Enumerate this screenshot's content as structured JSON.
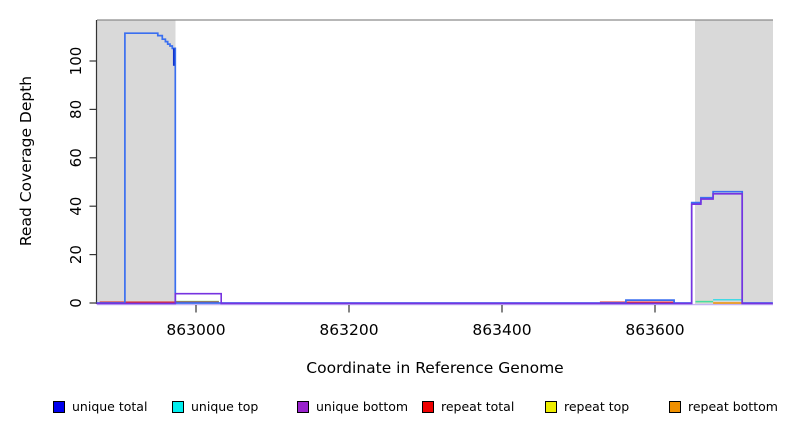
{
  "figure": {
    "background": "#ffffff",
    "plot_bg": "#ffffff",
    "highlight_color": "#d9d9d9",
    "axis_color": "#333333",
    "box_top_color": "#8c8c8c"
  },
  "chart_data": {
    "type": "line",
    "title": "",
    "xlabel": "Coordinate in Reference Genome",
    "ylabel": "Read Coverage Depth",
    "xlim": [
      862870,
      863754
    ],
    "ylim": [
      0,
      117
    ],
    "xticks": [
      "863000",
      "863200",
      "863400",
      "863600"
    ],
    "xtick_values": [
      863000,
      863200,
      863400,
      863600
    ],
    "yticks": [
      "0",
      "20",
      "40",
      "60",
      "80",
      "100"
    ],
    "ytick_values": [
      0,
      20,
      40,
      60,
      80,
      100
    ],
    "grid": false,
    "legend_position": "bottom",
    "highlight_regions": [
      [
        862870,
        862973
      ],
      [
        863652,
        863754
      ]
    ],
    "legend": [
      {
        "label": "unique total",
        "color": "#0000ee"
      },
      {
        "label": "unique top",
        "color": "#00eeee"
      },
      {
        "label": "unique bottom",
        "color": "#9922cc"
      },
      {
        "label": "repeat total",
        "color": "#ee0000"
      },
      {
        "label": "repeat top",
        "color": "#eeee00"
      },
      {
        "label": "repeat bottom",
        "color": "#f09000"
      }
    ],
    "series": [
      {
        "name": "repeat top",
        "draw_color": "#e8e800",
        "width": 1.5,
        "opacity": 1,
        "dy": -1.4,
        "segments": [
          [
            [
              862973,
              0
            ],
            [
              863030,
              0
            ]
          ],
          [
            [
              863653,
              0
            ],
            [
              863676,
              0
            ]
          ]
        ]
      },
      {
        "name": "unique top",
        "draw_color": "#00d8e8",
        "width": 1.5,
        "opacity": 0.7,
        "dy": -1.4,
        "segments": [
          [
            [
              862973,
              0
            ],
            [
              863030,
              0
            ]
          ],
          [
            [
              863653,
              0
            ],
            [
              863676,
              0
            ]
          ],
          [
            [
              863676,
              0.8
            ],
            [
              863714,
              0.8
            ]
          ]
        ]
      },
      {
        "name": "repeat total",
        "draw_color": "#e02020",
        "width": 1.4,
        "opacity": 1,
        "dy": -0.8,
        "segments": [
          [
            [
              862874,
              0
            ],
            [
              863030,
              0
            ]
          ],
          [
            [
              863528,
              0
            ],
            [
              863625,
              0
            ]
          ]
        ]
      },
      {
        "name": "repeat bottom",
        "draw_color": "#f09000",
        "width": 1.5,
        "opacity": 1,
        "dy": 0,
        "segments": [
          [
            [
              863676,
              0
            ],
            [
              863714,
              0
            ]
          ]
        ]
      },
      {
        "name": "unique total",
        "draw_color": "#3a6ff0",
        "width": 1.7,
        "opacity": 1,
        "dy": 0,
        "segments": [
          [
            [
              862870,
              0
            ],
            [
              862907,
              0
            ],
            [
              862907,
              111.5
            ],
            [
              862950,
              111.5
            ],
            [
              862950,
              110.5
            ],
            [
              862956,
              110.5
            ],
            [
              862956,
              109
            ],
            [
              862960,
              109
            ],
            [
              862960,
              108
            ],
            [
              862963,
              108
            ],
            [
              862963,
              107
            ],
            [
              862966,
              107
            ],
            [
              862966,
              106.2
            ],
            [
              862969,
              106.2
            ],
            [
              862969,
              105.2
            ],
            [
              862973,
              105.2
            ],
            [
              862973,
              0
            ],
            [
              863562,
              0
            ],
            [
              863562,
              1.2
            ],
            [
              863625,
              1.2
            ],
            [
              863625,
              0
            ],
            [
              863648,
              0
            ],
            [
              863648,
              41.5
            ],
            [
              863660,
              41.5
            ],
            [
              863660,
              43.5
            ],
            [
              863676,
              43.5
            ],
            [
              863676,
              46
            ],
            [
              863714,
              46
            ],
            [
              863714,
              0
            ],
            [
              863754,
              0
            ]
          ]
        ]
      },
      {
        "name": "unique total drop accent",
        "draw_color": "#1133cc",
        "width": 1.7,
        "opacity": 1,
        "dy": 0,
        "segments": [
          [
            [
              862971,
              105.2
            ],
            [
              862971,
              98
            ]
          ]
        ]
      },
      {
        "name": "unique bottom",
        "draw_color": "#7733e0",
        "width": 1.6,
        "opacity": 1,
        "dy": 0.4,
        "segments": [
          [
            [
              862870,
              0
            ],
            [
              862973,
              0
            ],
            [
              862973,
              4
            ],
            [
              863033,
              4
            ],
            [
              863033,
              0
            ],
            [
              863648,
              0
            ],
            [
              863648,
              41
            ],
            [
              863660,
              41
            ],
            [
              863660,
              43.1
            ],
            [
              863676,
              43.1
            ],
            [
              863676,
              45.3
            ],
            [
              863714,
              45.3
            ],
            [
              863714,
              0
            ],
            [
              863754,
              0
            ]
          ]
        ]
      }
    ]
  }
}
